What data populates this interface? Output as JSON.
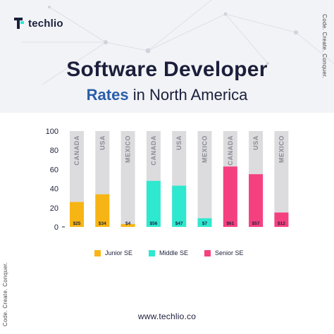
{
  "brand": {
    "name": "techlio",
    "tagline": "Code. Create. Conquer.",
    "url": "www.techlio.co"
  },
  "heading": {
    "line1": "Software Developer",
    "line2_highlight": "Rates",
    "line2_rest": " in North America"
  },
  "colors": {
    "junior": "#f7b515",
    "middle": "#2ee8cf",
    "senior": "#f5407f",
    "track": "#dcdcdf",
    "text": "#1b1f3b",
    "accent": "#2a5dab"
  },
  "chart_data": {
    "type": "bar",
    "categories": [
      "CANADA",
      "USA",
      "MEXICO",
      "CANADA",
      "USA",
      "MEXICO",
      "CANADA",
      "USA",
      "MEXICO"
    ],
    "groups": [
      "Junior SE",
      "Junior SE",
      "Junior SE",
      "Middle SE",
      "Middle SE",
      "Middle SE",
      "Senior SE",
      "Senior SE",
      "Senior SE"
    ],
    "values": [
      25,
      34,
      4,
      56,
      47,
      7,
      61,
      57,
      12
    ],
    "data_labels": [
      "$25",
      "$34",
      "$4",
      "$56",
      "$47",
      "$7",
      "$61",
      "$57",
      "$12"
    ],
    "bar_fill": [
      26,
      34,
      3,
      48,
      43,
      9,
      63,
      55,
      15
    ],
    "yticks": [
      0,
      20,
      40,
      60,
      80,
      100
    ],
    "ylim": [
      0,
      100
    ],
    "legend": [
      "Junior SE",
      "Middle SE",
      "Senior SE"
    ],
    "legend_position": "bottom",
    "grid": false
  }
}
